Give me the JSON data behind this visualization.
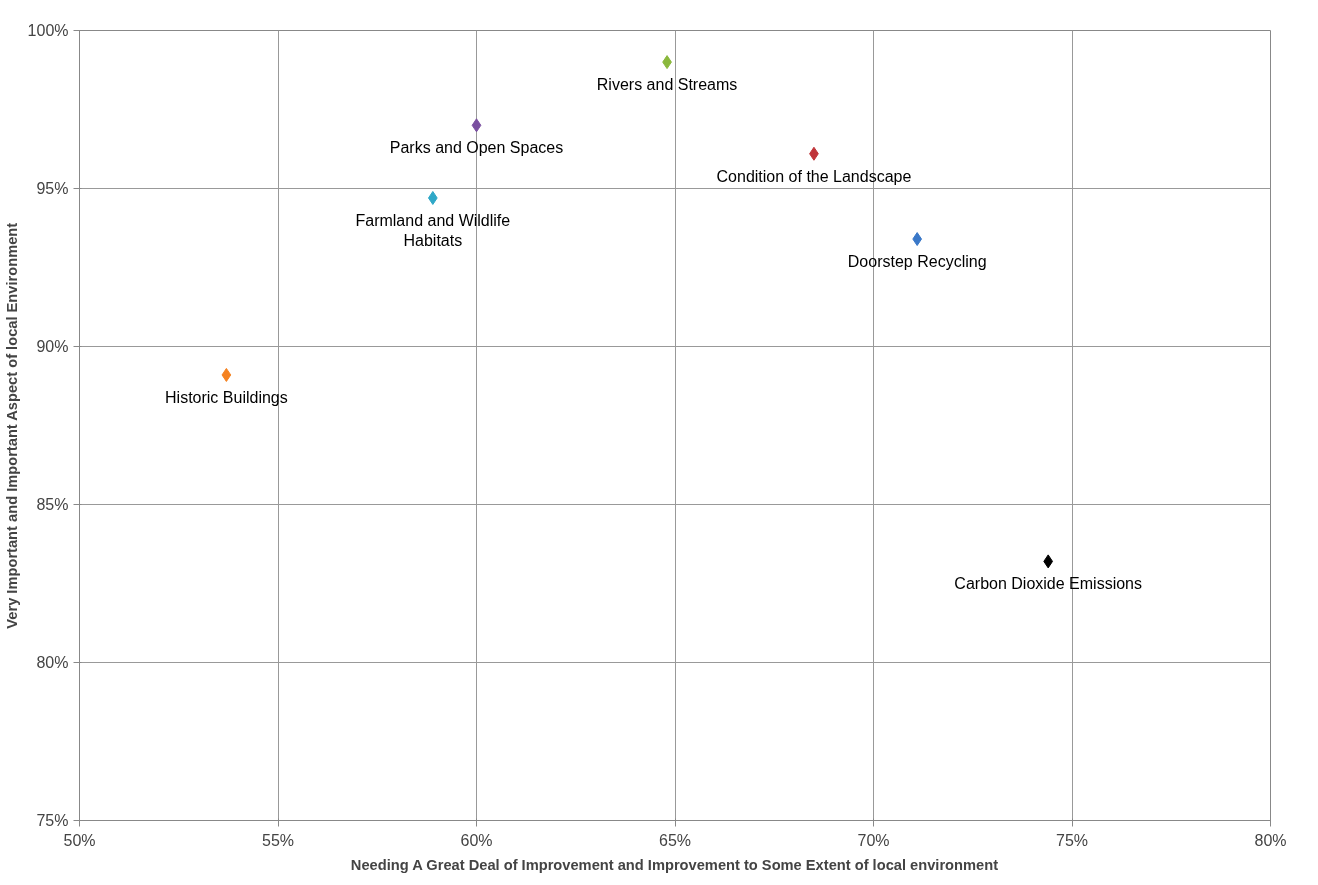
{
  "chart_data": {
    "type": "scatter",
    "xlabel": "Needing A Great Deal of Improvement and Improvement to Some Extent of local environment",
    "ylabel": "Very Important and Important Aspect of local Environment",
    "xlim": [
      50,
      80
    ],
    "ylim": [
      75,
      100
    ],
    "xticks": [
      {
        "value": 50,
        "label": "50%"
      },
      {
        "value": 55,
        "label": "55%"
      },
      {
        "value": 60,
        "label": "60%"
      },
      {
        "value": 65,
        "label": "65%"
      },
      {
        "value": 70,
        "label": "70%"
      },
      {
        "value": 75,
        "label": "75%"
      },
      {
        "value": 80,
        "label": "80%"
      }
    ],
    "yticks": [
      {
        "value": 75,
        "label": "75%"
      },
      {
        "value": 80,
        "label": "80%"
      },
      {
        "value": 85,
        "label": "85%"
      },
      {
        "value": 90,
        "label": "90%"
      },
      {
        "value": 95,
        "label": "95%"
      },
      {
        "value": 100,
        "label": "100%"
      }
    ],
    "grid": true,
    "marker": "diamond",
    "series": [
      {
        "name": "Historic Buildings",
        "color": "#f58220",
        "x": [
          53.7
        ],
        "values": [
          89.1
        ]
      },
      {
        "name": "Farmland and Wildlife\nHabitats",
        "color": "#2fa8c8",
        "x": [
          58.9
        ],
        "values": [
          94.7
        ]
      },
      {
        "name": "Parks and Open Spaces",
        "color": "#7a4fa0",
        "x": [
          60.0
        ],
        "values": [
          97.0
        ]
      },
      {
        "name": "Rivers and Streams",
        "color": "#8ab83c",
        "x": [
          64.8
        ],
        "values": [
          99.0
        ]
      },
      {
        "name": "Condition of the Landscape",
        "color": "#c0353a",
        "x": [
          68.5
        ],
        "values": [
          96.1
        ]
      },
      {
        "name": "Doorstep Recycling",
        "color": "#3a78c8",
        "x": [
          71.1
        ],
        "values": [
          93.4
        ]
      },
      {
        "name": "Carbon Dioxide Emissions",
        "color": "#000000",
        "x": [
          74.4
        ],
        "values": [
          83.2
        ]
      }
    ]
  }
}
